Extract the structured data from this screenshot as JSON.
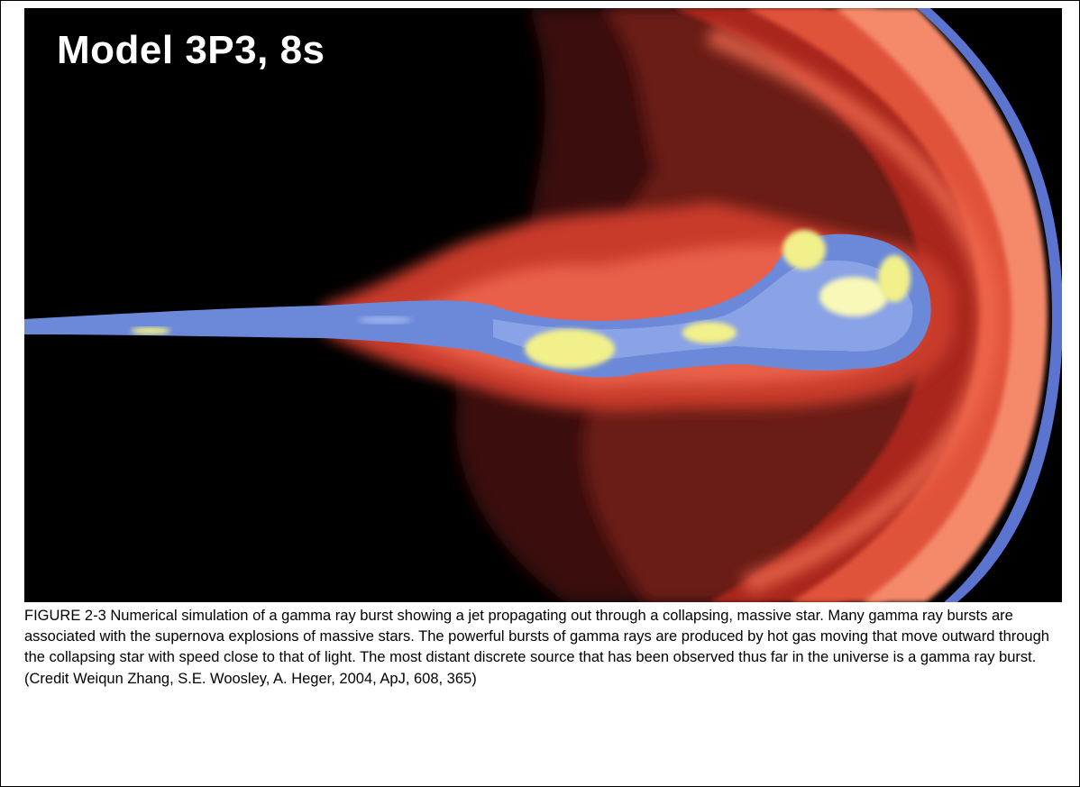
{
  "figure": {
    "overlay_label": "Model 3P3, 8s",
    "caption": "FIGURE 2-3 Numerical simulation of a gamma ray burst showing a jet propagating out through a collapsing, massive star. Many gamma ray bursts are associated with the supernova explosions of massive stars. The powerful bursts of gamma rays are produced by hot gas moving that move outward through the collapsing star with speed close to that of light. The most distant discrete source that has been observed thus far in the universe is a gamma ray burst.  (Credit Weiqun Zhang, S.E. Woosley, A. Heger, 2004, ApJ, 608, 365)"
  },
  "colors": {
    "background": "#000000",
    "outer_shell": "#c8322a",
    "mid_shell": "#f07050",
    "jet_core": "#6e8ad8",
    "hot_spot": "#f0f08a"
  }
}
